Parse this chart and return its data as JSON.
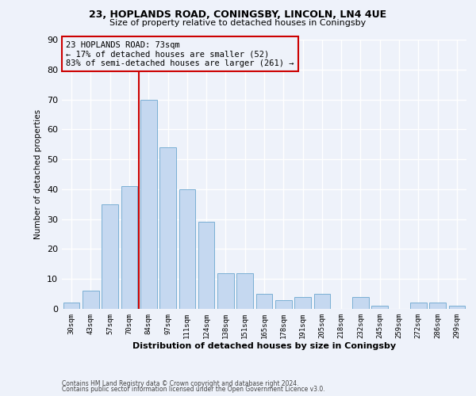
{
  "title1": "23, HOPLANDS ROAD, CONINGSBY, LINCOLN, LN4 4UE",
  "title2": "Size of property relative to detached houses in Coningsby",
  "xlabel": "Distribution of detached houses by size in Coningsby",
  "ylabel": "Number of detached properties",
  "categories": [
    "30sqm",
    "43sqm",
    "57sqm",
    "70sqm",
    "84sqm",
    "97sqm",
    "111sqm",
    "124sqm",
    "138sqm",
    "151sqm",
    "165sqm",
    "178sqm",
    "191sqm",
    "205sqm",
    "218sqm",
    "232sqm",
    "245sqm",
    "259sqm",
    "272sqm",
    "286sqm",
    "299sqm"
  ],
  "values": [
    2,
    6,
    35,
    41,
    70,
    54,
    40,
    29,
    12,
    12,
    5,
    3,
    4,
    5,
    0,
    4,
    1,
    0,
    2,
    2,
    1
  ],
  "bar_color": "#c5d8f0",
  "bar_edge_color": "#7aafd4",
  "vline_color": "#cc0000",
  "vline_position": 3.5,
  "annotation_box_color": "#cc0000",
  "property_label": "23 HOPLANDS ROAD: 73sqm",
  "annotation_line1": "← 17% of detached houses are smaller (52)",
  "annotation_line2": "83% of semi-detached houses are larger (261) →",
  "background_color": "#eef2fa",
  "grid_color": "#ffffff",
  "footer1": "Contains HM Land Registry data © Crown copyright and database right 2024.",
  "footer2": "Contains public sector information licensed under the Open Government Licence v3.0.",
  "ylim": [
    0,
    90
  ],
  "yticks": [
    0,
    10,
    20,
    30,
    40,
    50,
    60,
    70,
    80,
    90
  ]
}
